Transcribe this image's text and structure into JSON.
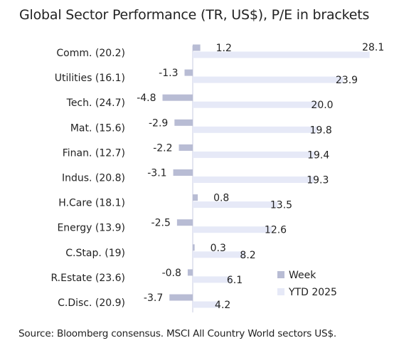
{
  "title": "Global Sector Performance (TR, US$), P/E in brackets",
  "source": "Source: Bloomberg consensus. MSCI All Country World sectors US$.",
  "colors": {
    "week": "#b8bcd4",
    "ytd": "#e6e9f7",
    "axis": "#c7cbe0"
  },
  "chart_data": {
    "type": "bar",
    "orientation": "horizontal",
    "title": "Global Sector Performance (TR, US$), P/E in brackets",
    "categories": [
      "Comm. (20.2)",
      "Utilities (16.1)",
      "Tech. (24.7)",
      "Mat. (15.6)",
      "Finan. (12.7)",
      "Indus. (20.8)",
      "H.Care (18.1)",
      "Energy (13.9)",
      "C.Stap. (19)",
      "R.Estate (23.6)",
      "C.Disc. (20.9)"
    ],
    "series": [
      {
        "name": "Week",
        "values": [
          1.2,
          -1.3,
          -4.8,
          -2.9,
          -2.2,
          -3.1,
          0.8,
          -2.5,
          0.3,
          -0.8,
          -3.7
        ]
      },
      {
        "name": "YTD 2025",
        "values": [
          28.1,
          23.9,
          20.0,
          19.8,
          19.4,
          19.3,
          13.5,
          12.6,
          8.2,
          6.1,
          4.2
        ]
      }
    ],
    "value_labels": {
      "Week": [
        "1.2",
        "-1.3",
        "-4.8",
        "-2.9",
        "-2.2",
        "-3.1",
        "0.8",
        "-2.5",
        "0.3",
        "-0.8",
        "-3.7"
      ],
      "YTD 2025": [
        "28.1",
        "23.9",
        "20.0",
        "19.8",
        "19.4",
        "19.3",
        "13.5",
        "12.6",
        "8.2",
        "6.1",
        "4.2"
      ]
    },
    "legend_position": "bottom-right",
    "grid": false,
    "xlabel": "",
    "ylabel": ""
  }
}
